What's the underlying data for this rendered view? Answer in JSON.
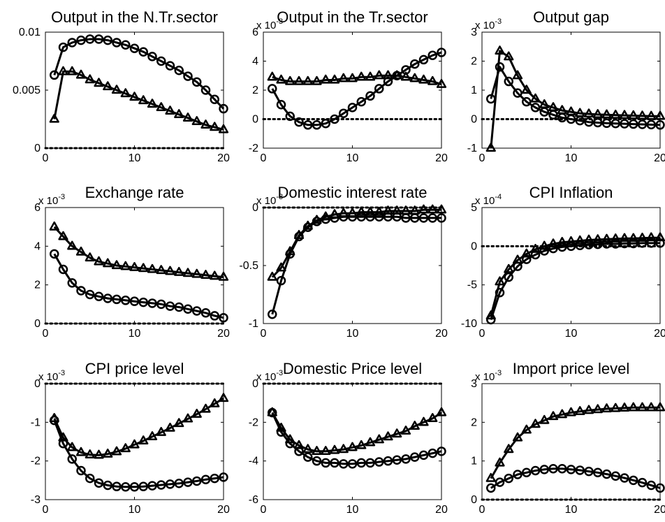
{
  "chart_data": [
    {
      "type": "line",
      "title": "Output in the N.Tr.sector",
      "multiplier": "",
      "x": [
        1,
        2,
        3,
        4,
        5,
        6,
        7,
        8,
        9,
        10,
        11,
        12,
        13,
        14,
        15,
        16,
        17,
        18,
        19,
        20
      ],
      "xlim": [
        0,
        20
      ],
      "xticks": [
        "0",
        "10",
        "20"
      ],
      "ylim": [
        0,
        0.01
      ],
      "yticks": [
        {
          "v": 0,
          "t": "0"
        },
        {
          "v": 0.005,
          "t": "0.005"
        },
        {
          "v": 0.01,
          "t": "0.01"
        }
      ],
      "zero_line": true,
      "series": [
        {
          "marker": "circle",
          "values": [
            0.0063,
            0.0087,
            0.0091,
            0.0093,
            0.0094,
            0.0094,
            0.0093,
            0.0091,
            0.0089,
            0.0086,
            0.0083,
            0.0079,
            0.0075,
            0.0071,
            0.0067,
            0.0062,
            0.0057,
            0.005,
            0.0042,
            0.0034
          ]
        },
        {
          "marker": "triangle",
          "values": [
            0.0025,
            0.0066,
            0.0066,
            0.0063,
            0.0059,
            0.0056,
            0.0053,
            0.005,
            0.0047,
            0.0044,
            0.0041,
            0.0038,
            0.0035,
            0.0032,
            0.0029,
            0.0026,
            0.0023,
            0.002,
            0.0018,
            0.0016
          ]
        }
      ]
    },
    {
      "type": "line",
      "title": "Output in the Tr.sector",
      "multiplier": "x 10",
      "multiplier_exp": "-3",
      "x": [
        1,
        2,
        3,
        4,
        5,
        6,
        7,
        8,
        9,
        10,
        11,
        12,
        13,
        14,
        15,
        16,
        17,
        18,
        19,
        20
      ],
      "xlim": [
        0,
        20
      ],
      "xticks": [
        "0",
        "10",
        "20"
      ],
      "ylim": [
        -2,
        6
      ],
      "yticks": [
        {
          "v": -2,
          "t": "-2"
        },
        {
          "v": 0,
          "t": "0"
        },
        {
          "v": 2,
          "t": "2"
        },
        {
          "v": 4,
          "t": "4"
        },
        {
          "v": 6,
          "t": "6"
        }
      ],
      "zero_line": true,
      "series": [
        {
          "marker": "circle",
          "values": [
            2.1,
            1.0,
            0.2,
            -0.2,
            -0.4,
            -0.4,
            -0.3,
            0.0,
            0.4,
            0.8,
            1.2,
            1.6,
            2.1,
            2.6,
            3.0,
            3.4,
            3.8,
            4.1,
            4.4,
            4.6
          ]
        },
        {
          "marker": "triangle",
          "values": [
            2.9,
            2.7,
            2.6,
            2.6,
            2.6,
            2.6,
            2.7,
            2.7,
            2.8,
            2.8,
            2.9,
            2.9,
            3.0,
            3.0,
            3.0,
            2.9,
            2.8,
            2.7,
            2.6,
            2.4
          ]
        }
      ]
    },
    {
      "type": "line",
      "title": "Output gap",
      "multiplier": "x 10",
      "multiplier_exp": "-3",
      "x": [
        1,
        2,
        3,
        4,
        5,
        6,
        7,
        8,
        9,
        10,
        11,
        12,
        13,
        14,
        15,
        16,
        17,
        18,
        19,
        20
      ],
      "xlim": [
        0,
        20
      ],
      "xticks": [
        "0",
        "10",
        "20"
      ],
      "ylim": [
        -1,
        3
      ],
      "yticks": [
        {
          "v": -1,
          "t": "-1"
        },
        {
          "v": 0,
          "t": "0"
        },
        {
          "v": 1,
          "t": "1"
        },
        {
          "v": 2,
          "t": "2"
        },
        {
          "v": 3,
          "t": "3"
        }
      ],
      "zero_line": true,
      "series": [
        {
          "marker": "circle",
          "values": [
            0.7,
            1.8,
            1.3,
            0.9,
            0.6,
            0.4,
            0.25,
            0.15,
            0.05,
            0.0,
            -0.05,
            -0.1,
            -0.12,
            -0.14,
            -0.15,
            -0.16,
            -0.17,
            -0.18,
            -0.19,
            -0.2
          ]
        },
        {
          "marker": "triangle",
          "values": [
            -1.0,
            2.35,
            2.15,
            1.5,
            1.0,
            0.7,
            0.5,
            0.4,
            0.3,
            0.25,
            0.2,
            0.18,
            0.16,
            0.15,
            0.14,
            0.13,
            0.12,
            0.11,
            0.1,
            0.1
          ]
        }
      ]
    },
    {
      "type": "line",
      "title": "Exchange rate",
      "multiplier": "x 10",
      "multiplier_exp": "-3",
      "x": [
        1,
        2,
        3,
        4,
        5,
        6,
        7,
        8,
        9,
        10,
        11,
        12,
        13,
        14,
        15,
        16,
        17,
        18,
        19,
        20
      ],
      "xlim": [
        0,
        20
      ],
      "xticks": [
        "0",
        "10",
        "20"
      ],
      "ylim": [
        0,
        6
      ],
      "yticks": [
        {
          "v": 0,
          "t": "0"
        },
        {
          "v": 2,
          "t": "2"
        },
        {
          "v": 4,
          "t": "4"
        },
        {
          "v": 6,
          "t": "6"
        }
      ],
      "zero_line": true,
      "series": [
        {
          "marker": "circle",
          "values": [
            3.6,
            2.8,
            2.1,
            1.7,
            1.5,
            1.4,
            1.3,
            1.25,
            1.2,
            1.15,
            1.1,
            1.05,
            1.0,
            0.9,
            0.85,
            0.75,
            0.65,
            0.55,
            0.4,
            0.3
          ]
        },
        {
          "marker": "triangle",
          "values": [
            5.0,
            4.5,
            4.0,
            3.7,
            3.4,
            3.2,
            3.1,
            3.0,
            2.95,
            2.9,
            2.85,
            2.8,
            2.75,
            2.7,
            2.65,
            2.6,
            2.55,
            2.5,
            2.45,
            2.4
          ]
        }
      ]
    },
    {
      "type": "line",
      "title": "Domestic interest rate",
      "multiplier": "x 10",
      "multiplier_exp": "-3",
      "x": [
        1,
        2,
        3,
        4,
        5,
        6,
        7,
        8,
        9,
        10,
        11,
        12,
        13,
        14,
        15,
        16,
        17,
        18,
        19,
        20
      ],
      "xlim": [
        0,
        20
      ],
      "xticks": [
        "0",
        "10",
        "20"
      ],
      "ylim": [
        -1,
        0
      ],
      "yticks": [
        {
          "v": -1,
          "t": "-1"
        },
        {
          "v": -0.5,
          "t": "-0.5"
        },
        {
          "v": 0,
          "t": "0"
        }
      ],
      "zero_line": true,
      "series": [
        {
          "marker": "circle",
          "values": [
            -0.92,
            -0.63,
            -0.4,
            -0.25,
            -0.17,
            -0.12,
            -0.1,
            -0.09,
            -0.08,
            -0.08,
            -0.08,
            -0.08,
            -0.08,
            -0.08,
            -0.08,
            -0.09,
            -0.09,
            -0.09,
            -0.09,
            -0.09
          ]
        },
        {
          "marker": "triangle",
          "values": [
            -0.6,
            -0.52,
            -0.38,
            -0.24,
            -0.16,
            -0.11,
            -0.08,
            -0.06,
            -0.05,
            -0.05,
            -0.04,
            -0.04,
            -0.04,
            -0.03,
            -0.03,
            -0.03,
            -0.03,
            -0.02,
            -0.02,
            -0.02
          ]
        }
      ]
    },
    {
      "type": "line",
      "title": "CPI Inflation",
      "multiplier": "x 10",
      "multiplier_exp": "-4",
      "x": [
        1,
        2,
        3,
        4,
        5,
        6,
        7,
        8,
        9,
        10,
        11,
        12,
        13,
        14,
        15,
        16,
        17,
        18,
        19,
        20
      ],
      "xlim": [
        0,
        20
      ],
      "xticks": [
        "0",
        "10",
        "20"
      ],
      "ylim": [
        -10,
        5
      ],
      "yticks": [
        {
          "v": -10,
          "t": "-10"
        },
        {
          "v": -5,
          "t": "-5"
        },
        {
          "v": 0,
          "t": "0"
        },
        {
          "v": 5,
          "t": "5"
        }
      ],
      "zero_line": true,
      "series": [
        {
          "marker": "circle",
          "values": [
            -9.5,
            -6.0,
            -4.0,
            -2.6,
            -1.7,
            -1.1,
            -0.6,
            -0.3,
            -0.1,
            0.0,
            0.1,
            0.2,
            0.25,
            0.3,
            0.3,
            0.35,
            0.35,
            0.4,
            0.4,
            0.4
          ]
        },
        {
          "marker": "triangle",
          "values": [
            -9.0,
            -4.6,
            -3.0,
            -1.8,
            -1.0,
            -0.4,
            0.0,
            0.3,
            0.5,
            0.6,
            0.7,
            0.8,
            0.85,
            0.9,
            0.95,
            1.0,
            1.0,
            1.05,
            1.1,
            1.1
          ]
        }
      ]
    },
    {
      "type": "line",
      "title": "CPI price level",
      "multiplier": "x 10",
      "multiplier_exp": "-3",
      "x": [
        1,
        2,
        3,
        4,
        5,
        6,
        7,
        8,
        9,
        10,
        11,
        12,
        13,
        14,
        15,
        16,
        17,
        18,
        19,
        20
      ],
      "xlim": [
        0,
        20
      ],
      "xticks": [
        "0",
        "10",
        "20"
      ],
      "ylim": [
        -3,
        0
      ],
      "yticks": [
        {
          "v": -3,
          "t": "-3"
        },
        {
          "v": -2,
          "t": "-2"
        },
        {
          "v": -1,
          "t": "-1"
        },
        {
          "v": 0,
          "t": "0"
        }
      ],
      "zero_line": true,
      "series": [
        {
          "marker": "circle",
          "values": [
            -0.95,
            -1.55,
            -1.95,
            -2.25,
            -2.45,
            -2.57,
            -2.63,
            -2.66,
            -2.67,
            -2.67,
            -2.66,
            -2.64,
            -2.62,
            -2.6,
            -2.58,
            -2.55,
            -2.52,
            -2.48,
            -2.45,
            -2.42
          ]
        },
        {
          "marker": "triangle",
          "values": [
            -0.9,
            -1.4,
            -1.65,
            -1.78,
            -1.84,
            -1.85,
            -1.82,
            -1.76,
            -1.68,
            -1.58,
            -1.48,
            -1.37,
            -1.26,
            -1.15,
            -1.03,
            -0.91,
            -0.79,
            -0.66,
            -0.52,
            -0.38
          ]
        }
      ]
    },
    {
      "type": "line",
      "title": "Domestic Price level",
      "multiplier": "x 10",
      "multiplier_exp": "-3",
      "x": [
        1,
        2,
        3,
        4,
        5,
        6,
        7,
        8,
        9,
        10,
        11,
        12,
        13,
        14,
        15,
        16,
        17,
        18,
        19,
        20
      ],
      "xlim": [
        0,
        20
      ],
      "xticks": [
        "0",
        "10",
        "20"
      ],
      "ylim": [
        -6,
        0
      ],
      "yticks": [
        {
          "v": -6,
          "t": "-6"
        },
        {
          "v": -4,
          "t": "-4"
        },
        {
          "v": -2,
          "t": "-2"
        },
        {
          "v": 0,
          "t": "0"
        }
      ],
      "zero_line": true,
      "series": [
        {
          "marker": "circle",
          "values": [
            -1.5,
            -2.5,
            -3.1,
            -3.5,
            -3.8,
            -4.0,
            -4.1,
            -4.1,
            -4.15,
            -4.15,
            -4.1,
            -4.1,
            -4.05,
            -4.0,
            -3.95,
            -3.9,
            -3.8,
            -3.7,
            -3.6,
            -3.5
          ]
        },
        {
          "marker": "triangle",
          "values": [
            -1.5,
            -2.3,
            -2.9,
            -3.2,
            -3.4,
            -3.5,
            -3.5,
            -3.45,
            -3.4,
            -3.3,
            -3.2,
            -3.05,
            -2.9,
            -2.75,
            -2.6,
            -2.45,
            -2.2,
            -2.0,
            -1.8,
            -1.5
          ]
        }
      ]
    },
    {
      "type": "line",
      "title": "Import price level",
      "multiplier": "x 10",
      "multiplier_exp": "-3",
      "x": [
        1,
        2,
        3,
        4,
        5,
        6,
        7,
        8,
        9,
        10,
        11,
        12,
        13,
        14,
        15,
        16,
        17,
        18,
        19,
        20
      ],
      "xlim": [
        0,
        20
      ],
      "xticks": [
        "0",
        "10",
        "20"
      ],
      "ylim": [
        0,
        3
      ],
      "yticks": [
        {
          "v": 0,
          "t": "0"
        },
        {
          "v": 1,
          "t": "1"
        },
        {
          "v": 2,
          "t": "2"
        },
        {
          "v": 3,
          "t": "3"
        }
      ],
      "zero_line": true,
      "series": [
        {
          "marker": "circle",
          "values": [
            0.3,
            0.45,
            0.55,
            0.65,
            0.7,
            0.75,
            0.78,
            0.8,
            0.8,
            0.78,
            0.76,
            0.73,
            0.7,
            0.66,
            0.61,
            0.56,
            0.5,
            0.44,
            0.37,
            0.3
          ]
        },
        {
          "marker": "triangle",
          "values": [
            0.55,
            0.95,
            1.3,
            1.6,
            1.8,
            1.95,
            2.05,
            2.15,
            2.2,
            2.25,
            2.28,
            2.31,
            2.33,
            2.35,
            2.36,
            2.37,
            2.38,
            2.38,
            2.38,
            2.38
          ]
        }
      ]
    }
  ]
}
